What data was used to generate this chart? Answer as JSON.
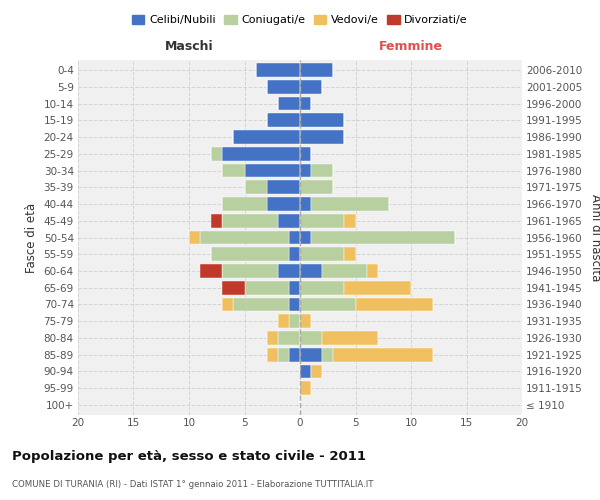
{
  "age_groups": [
    "100+",
    "95-99",
    "90-94",
    "85-89",
    "80-84",
    "75-79",
    "70-74",
    "65-69",
    "60-64",
    "55-59",
    "50-54",
    "45-49",
    "40-44",
    "35-39",
    "30-34",
    "25-29",
    "20-24",
    "15-19",
    "10-14",
    "5-9",
    "0-4"
  ],
  "birth_years": [
    "≤ 1910",
    "1911-1915",
    "1916-1920",
    "1921-1925",
    "1926-1930",
    "1931-1935",
    "1936-1940",
    "1941-1945",
    "1946-1950",
    "1951-1955",
    "1956-1960",
    "1961-1965",
    "1966-1970",
    "1971-1975",
    "1976-1980",
    "1981-1985",
    "1986-1990",
    "1991-1995",
    "1996-2000",
    "2001-2005",
    "2006-2010"
  ],
  "maschi": {
    "celibi": [
      0,
      0,
      0,
      1,
      0,
      0,
      1,
      1,
      2,
      1,
      1,
      2,
      3,
      3,
      5,
      7,
      6,
      3,
      2,
      3,
      4
    ],
    "coniugati": [
      0,
      0,
      0,
      1,
      2,
      1,
      5,
      4,
      5,
      7,
      8,
      5,
      4,
      2,
      2,
      1,
      0,
      0,
      0,
      0,
      0
    ],
    "vedovi": [
      0,
      0,
      0,
      1,
      1,
      1,
      1,
      0,
      0,
      0,
      1,
      0,
      0,
      0,
      0,
      0,
      0,
      0,
      0,
      0,
      0
    ],
    "divorziati": [
      0,
      0,
      0,
      0,
      0,
      0,
      0,
      2,
      2,
      0,
      0,
      1,
      0,
      0,
      0,
      0,
      0,
      0,
      0,
      0,
      0
    ]
  },
  "femmine": {
    "nubili": [
      0,
      0,
      1,
      2,
      0,
      0,
      0,
      0,
      2,
      0,
      1,
      0,
      1,
      0,
      1,
      1,
      4,
      4,
      1,
      2,
      3
    ],
    "coniugate": [
      0,
      0,
      0,
      1,
      2,
      0,
      5,
      4,
      4,
      4,
      13,
      4,
      7,
      3,
      2,
      0,
      0,
      0,
      0,
      0,
      0
    ],
    "vedove": [
      0,
      1,
      1,
      9,
      5,
      1,
      7,
      6,
      1,
      1,
      0,
      1,
      0,
      0,
      0,
      0,
      0,
      0,
      0,
      0,
      0
    ],
    "divorziate": [
      0,
      0,
      0,
      0,
      0,
      0,
      0,
      0,
      0,
      0,
      0,
      0,
      0,
      0,
      0,
      0,
      0,
      0,
      0,
      0,
      0
    ]
  },
  "colors": {
    "celibi_nubili": "#4472c4",
    "coniugati_e": "#b8cfa0",
    "vedovi_e": "#f0c060",
    "divorziati_e": "#c0392b"
  },
  "xlim": 20,
  "title": "Popolazione per età, sesso e stato civile - 2011",
  "subtitle": "COMUNE DI TURANIA (RI) - Dati ISTAT 1° gennaio 2011 - Elaborazione TUTTITALIA.IT",
  "ylabel_left": "Fasce di età",
  "ylabel_right": "Anni di nascita",
  "xlabel_maschi": "Maschi",
  "xlabel_femmine": "Femmine",
  "bg_color": "#ffffff",
  "grid_color": "#cccccc",
  "ax_bg_color": "#f0f0f0"
}
